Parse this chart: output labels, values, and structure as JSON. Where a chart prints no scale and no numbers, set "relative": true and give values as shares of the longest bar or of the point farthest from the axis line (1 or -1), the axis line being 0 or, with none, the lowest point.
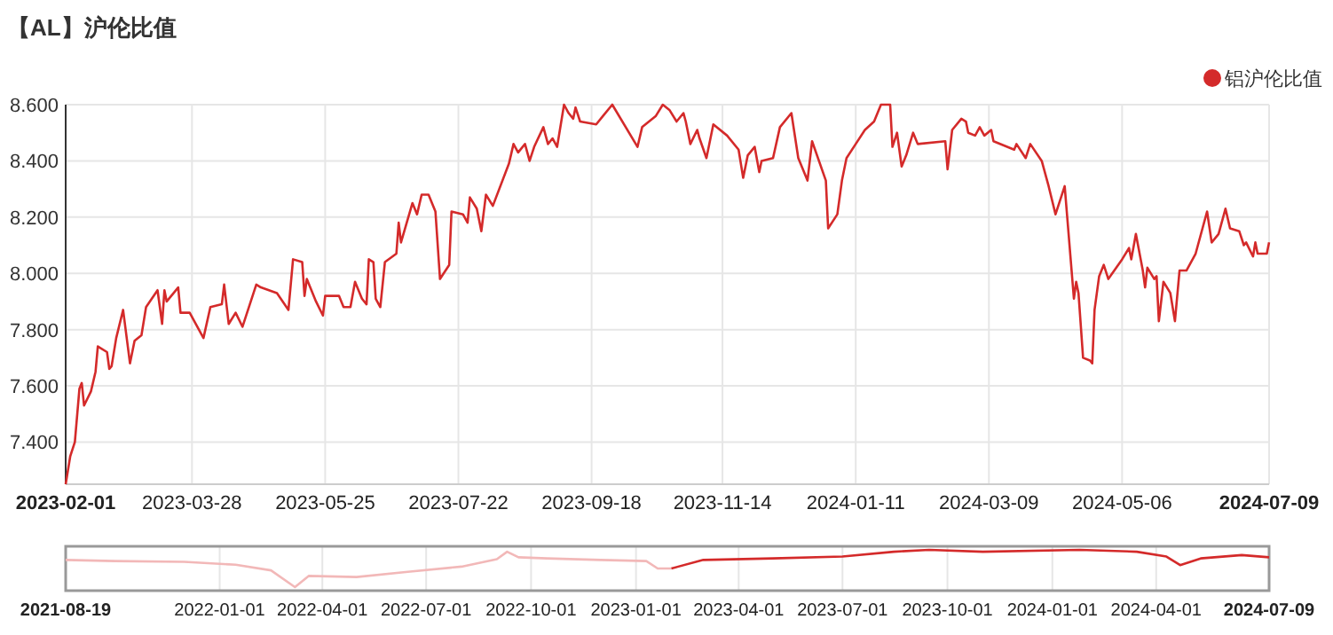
{
  "chart_data": [
    {
      "type": "line",
      "title": "【AL】沪伦比值",
      "legend": "top right",
      "grid": true,
      "marker": "none",
      "line_style": "solid",
      "xlim": [
        "2023-02-01",
        "2024-07-09"
      ],
      "xticks": [
        "2023-02-01",
        "2023-03-28",
        "2023-05-25",
        "2023-07-22",
        "2023-09-18",
        "2023-11-14",
        "2024-01-11",
        "2024-03-09",
        "2024-05-06",
        "2024-07-09"
      ],
      "ylim": [
        7.25,
        8.6
      ],
      "yticks": [
        {
          "value": 7.4,
          "label": "7.400"
        },
        {
          "value": 7.6,
          "label": "7.600"
        },
        {
          "value": 7.8,
          "label": "7.800"
        },
        {
          "value": 8.0,
          "label": "8.000"
        },
        {
          "value": 8.2,
          "label": "8.200"
        },
        {
          "value": 8.4,
          "label": "8.400"
        },
        {
          "value": 8.6,
          "label": "8.600"
        }
      ],
      "series": [
        {
          "name": "铝沪伦比值",
          "color": "#d42a2a",
          "x": [
            "2023-02-01",
            "2023-02-03",
            "2023-02-05",
            "2023-02-07",
            "2023-02-08",
            "2023-02-09",
            "2023-02-12",
            "2023-02-14",
            "2023-02-15",
            "2023-02-19",
            "2023-02-20",
            "2023-02-21",
            "2023-02-23",
            "2023-02-26",
            "2023-03-01",
            "2023-03-03",
            "2023-03-06",
            "2023-03-08",
            "2023-03-13",
            "2023-03-15",
            "2023-03-16",
            "2023-03-17",
            "2023-03-22",
            "2023-03-23",
            "2023-03-27",
            "2023-04-02",
            "2023-04-05",
            "2023-04-10",
            "2023-04-11",
            "2023-04-13",
            "2023-04-16",
            "2023-04-19",
            "2023-04-25",
            "2023-04-27",
            "2023-05-04",
            "2023-05-09",
            "2023-05-11",
            "2023-05-15",
            "2023-05-16",
            "2023-05-17",
            "2023-05-21",
            "2023-05-24",
            "2023-05-25",
            "2023-05-31",
            "2023-06-02",
            "2023-06-05",
            "2023-06-07",
            "2023-06-10",
            "2023-06-12",
            "2023-06-13",
            "2023-06-15",
            "2023-06-16",
            "2023-06-18",
            "2023-06-20",
            "2023-06-25",
            "2023-06-26",
            "2023-06-27",
            "2023-07-02",
            "2023-07-04",
            "2023-07-06",
            "2023-07-09",
            "2023-07-12",
            "2023-07-14",
            "2023-07-18",
            "2023-07-19",
            "2023-07-24",
            "2023-07-26",
            "2023-07-27",
            "2023-07-30",
            "2023-08-01",
            "2023-08-03",
            "2023-08-06",
            "2023-08-13",
            "2023-08-15",
            "2023-08-17",
            "2023-08-20",
            "2023-08-22",
            "2023-08-24",
            "2023-08-28",
            "2023-08-30",
            "2023-09-01",
            "2023-09-03",
            "2023-09-06",
            "2023-09-08",
            "2023-09-10",
            "2023-09-11",
            "2023-09-13",
            "2023-09-20",
            "2023-09-23",
            "2023-09-27",
            "2023-10-08",
            "2023-10-10",
            "2023-10-16",
            "2023-10-19",
            "2023-10-22",
            "2023-10-25",
            "2023-10-28",
            "2023-10-29",
            "2023-10-31",
            "2023-11-03",
            "2023-11-04",
            "2023-11-07",
            "2023-11-10",
            "2023-11-16",
            "2023-11-21",
            "2023-11-23",
            "2023-11-25",
            "2023-11-28",
            "2023-11-30",
            "2023-12-01",
            "2023-12-06",
            "2023-12-09",
            "2023-12-14",
            "2023-12-17",
            "2023-12-21",
            "2023-12-23",
            "2023-12-29",
            "2023-12-30",
            "2024-01-03",
            "2024-01-05",
            "2024-01-07",
            "2024-01-11",
            "2024-01-15",
            "2024-01-19",
            "2024-01-22",
            "2024-01-26",
            "2024-01-27",
            "2024-01-29",
            "2024-01-31",
            "2024-02-02",
            "2024-02-05",
            "2024-02-07",
            "2024-02-19",
            "2024-02-20",
            "2024-02-22",
            "2024-02-26",
            "2024-02-28",
            "2024-02-29",
            "2024-03-03",
            "2024-03-05",
            "2024-03-07",
            "2024-03-10",
            "2024-03-11",
            "2024-03-20",
            "2024-03-21",
            "2024-03-25",
            "2024-03-27",
            "2024-04-01",
            "2024-04-04",
            "2024-04-07",
            "2024-04-11",
            "2024-04-15",
            "2024-04-16",
            "2024-04-17",
            "2024-04-19",
            "2024-04-22",
            "2024-04-23",
            "2024-04-24",
            "2024-04-26",
            "2024-04-28",
            "2024-04-30",
            "2024-05-06",
            "2024-05-09",
            "2024-05-10",
            "2024-05-12",
            "2024-05-15",
            "2024-05-16",
            "2024-05-17",
            "2024-05-20",
            "2024-05-21",
            "2024-05-22",
            "2024-05-24",
            "2024-05-27",
            "2024-05-29",
            "2024-05-31",
            "2024-06-03",
            "2024-06-07",
            "2024-06-12",
            "2024-06-14",
            "2024-06-17",
            "2024-06-20",
            "2024-06-22",
            "2024-06-26",
            "2024-06-28",
            "2024-06-29",
            "2024-07-02",
            "2024-07-03",
            "2024-07-04",
            "2024-07-08",
            "2024-07-09"
          ],
          "values": [
            7.25,
            7.35,
            7.4,
            7.59,
            7.61,
            7.53,
            7.58,
            7.65,
            7.74,
            7.72,
            7.66,
            7.67,
            7.77,
            7.87,
            7.68,
            7.76,
            7.78,
            7.88,
            7.94,
            7.82,
            7.94,
            7.9,
            7.95,
            7.86,
            7.86,
            7.77,
            7.88,
            7.89,
            7.96,
            7.82,
            7.86,
            7.81,
            7.96,
            7.95,
            7.93,
            7.87,
            8.05,
            8.04,
            7.92,
            7.98,
            7.9,
            7.85,
            7.92,
            7.92,
            7.88,
            7.88,
            7.97,
            7.91,
            7.89,
            8.05,
            8.04,
            7.91,
            7.88,
            8.04,
            8.07,
            8.18,
            8.11,
            8.25,
            8.21,
            8.28,
            8.28,
            8.22,
            7.98,
            8.03,
            8.22,
            8.21,
            8.18,
            8.27,
            8.23,
            8.15,
            8.28,
            8.24,
            8.39,
            8.46,
            8.43,
            8.46,
            8.4,
            8.45,
            8.52,
            8.46,
            8.48,
            8.45,
            8.6,
            8.57,
            8.55,
            8.59,
            8.54,
            8.53,
            8.56,
            8.6,
            8.45,
            8.52,
            8.56,
            8.6,
            8.58,
            8.54,
            8.57,
            8.54,
            8.46,
            8.51,
            8.48,
            8.41,
            8.53,
            8.49,
            8.44,
            8.34,
            8.42,
            8.45,
            8.36,
            8.4,
            8.41,
            8.52,
            8.57,
            8.41,
            8.33,
            8.47,
            8.33,
            8.16,
            8.21,
            8.33,
            8.41,
            8.46,
            8.51,
            8.54,
            8.6,
            8.6,
            8.45,
            8.5,
            8.38,
            8.42,
            8.5,
            8.46,
            8.47,
            8.37,
            8.51,
            8.55,
            8.54,
            8.5,
            8.49,
            8.52,
            8.49,
            8.51,
            8.47,
            8.44,
            8.46,
            8.41,
            8.46,
            8.4,
            8.31,
            8.21,
            8.31,
            7.91,
            7.97,
            7.93,
            7.7,
            7.69,
            7.68,
            7.87,
            7.99,
            8.03,
            7.98,
            8.05,
            8.09,
            8.05,
            8.14,
            8.01,
            7.95,
            8.02,
            7.98,
            7.99,
            7.83,
            7.97,
            7.93,
            7.83,
            8.01,
            8.01,
            8.07,
            8.22,
            8.11,
            8.14,
            8.23,
            8.16,
            8.15,
            8.1,
            8.11,
            8.06,
            8.11,
            8.07,
            8.07,
            8.11
          ]
        }
      ]
    },
    {
      "type": "line",
      "relative": true,
      "grid": "x",
      "marker": "none",
      "line_style": "solid",
      "xlim": [
        "2021-08-19",
        "2024-07-09"
      ],
      "xticks": [
        "2021-08-19",
        "2022-01-01",
        "2022-04-01",
        "2022-07-01",
        "2022-10-01",
        "2023-01-01",
        "2023-04-01",
        "2023-07-01",
        "2023-10-01",
        "2024-01-01",
        "2024-04-01",
        "2024-07-09"
      ],
      "series": [
        {
          "color": "#f2b8b8",
          "x": [
            "2021-08-19",
            "2021-10-01",
            "2021-12-01",
            "2022-01-15",
            "2022-02-15",
            "2022-03-08",
            "2022-03-20",
            "2022-05-01",
            "2022-06-15",
            "2022-08-01",
            "2022-09-01",
            "2022-09-10",
            "2022-09-20",
            "2022-10-15",
            "2022-12-01",
            "2023-01-10",
            "2023-01-20",
            "2023-02-01"
          ],
          "values": [
            0.73,
            0.7,
            0.68,
            0.6,
            0.45,
            0,
            0.3,
            0.27,
            0.41,
            0.55,
            0.75,
            0.95,
            0.8,
            0.77,
            0.73,
            0.7,
            0.5,
            0.5
          ]
        },
        {
          "color": "#d42a2a",
          "x": [
            "2023-02-01",
            "2023-03-01",
            "2023-05-01",
            "2023-07-01",
            "2023-08-15",
            "2023-09-15",
            "2023-11-01",
            "2024-01-25",
            "2024-03-15",
            "2024-04-10",
            "2024-04-22",
            "2024-05-10",
            "2024-06-15",
            "2024-07-09"
          ],
          "values": [
            0.5,
            0.73,
            0.77,
            0.82,
            0.95,
            1,
            0.95,
            1,
            0.95,
            0.82,
            0.59,
            0.77,
            0.86,
            0.8
          ]
        }
      ]
    }
  ]
}
